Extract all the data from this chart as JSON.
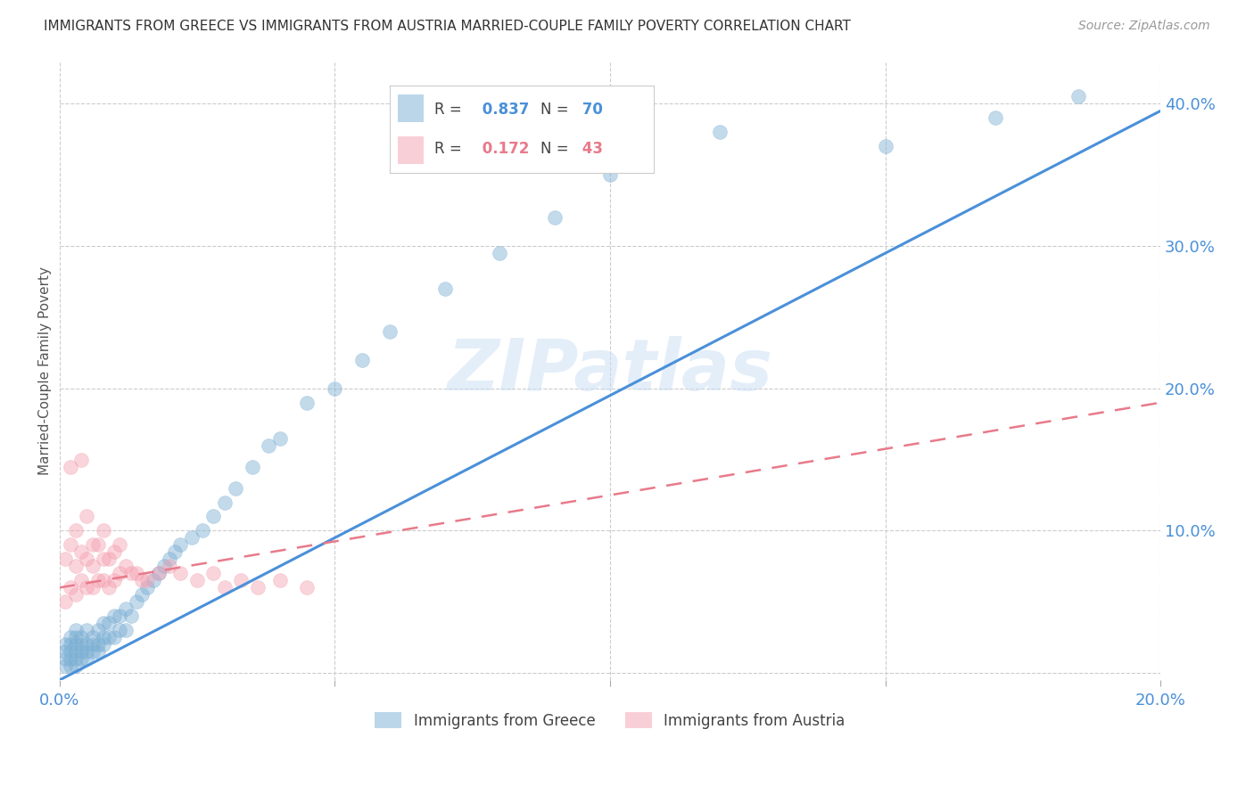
{
  "title": "IMMIGRANTS FROM GREECE VS IMMIGRANTS FROM AUSTRIA MARRIED-COUPLE FAMILY POVERTY CORRELATION CHART",
  "source": "Source: ZipAtlas.com",
  "ylabel": "Married-Couple Family Poverty",
  "xlim": [
    0.0,
    0.2
  ],
  "ylim": [
    -0.005,
    0.43
  ],
  "greece_color": "#7bafd4",
  "austria_color": "#f4a0b0",
  "greece_R": 0.837,
  "greece_N": 70,
  "austria_R": 0.172,
  "austria_N": 43,
  "greece_line_color": "#4a90d9",
  "austria_line_color": "#e87a8a",
  "background_color": "#ffffff",
  "greece_x": [
    0.001,
    0.001,
    0.001,
    0.001,
    0.002,
    0.002,
    0.002,
    0.002,
    0.002,
    0.003,
    0.003,
    0.003,
    0.003,
    0.003,
    0.003,
    0.004,
    0.004,
    0.004,
    0.004,
    0.005,
    0.005,
    0.005,
    0.005,
    0.006,
    0.006,
    0.006,
    0.007,
    0.007,
    0.007,
    0.008,
    0.008,
    0.008,
    0.009,
    0.009,
    0.01,
    0.01,
    0.011,
    0.011,
    0.012,
    0.012,
    0.013,
    0.014,
    0.015,
    0.016,
    0.017,
    0.018,
    0.019,
    0.02,
    0.021,
    0.022,
    0.024,
    0.026,
    0.028,
    0.03,
    0.032,
    0.035,
    0.038,
    0.04,
    0.045,
    0.05,
    0.055,
    0.06,
    0.07,
    0.08,
    0.09,
    0.1,
    0.12,
    0.15,
    0.17,
    0.185
  ],
  "greece_y": [
    0.005,
    0.01,
    0.015,
    0.02,
    0.005,
    0.01,
    0.015,
    0.02,
    0.025,
    0.005,
    0.01,
    0.015,
    0.02,
    0.025,
    0.03,
    0.01,
    0.015,
    0.02,
    0.025,
    0.01,
    0.015,
    0.02,
    0.03,
    0.015,
    0.02,
    0.025,
    0.015,
    0.02,
    0.03,
    0.02,
    0.025,
    0.035,
    0.025,
    0.035,
    0.025,
    0.04,
    0.03,
    0.04,
    0.03,
    0.045,
    0.04,
    0.05,
    0.055,
    0.06,
    0.065,
    0.07,
    0.075,
    0.08,
    0.085,
    0.09,
    0.095,
    0.1,
    0.11,
    0.12,
    0.13,
    0.145,
    0.16,
    0.165,
    0.19,
    0.2,
    0.22,
    0.24,
    0.27,
    0.295,
    0.32,
    0.35,
    0.38,
    0.37,
    0.39,
    0.405
  ],
  "austria_x": [
    0.001,
    0.001,
    0.002,
    0.002,
    0.002,
    0.003,
    0.003,
    0.003,
    0.004,
    0.004,
    0.004,
    0.005,
    0.005,
    0.005,
    0.006,
    0.006,
    0.006,
    0.007,
    0.007,
    0.008,
    0.008,
    0.008,
    0.009,
    0.009,
    0.01,
    0.01,
    0.011,
    0.011,
    0.012,
    0.013,
    0.014,
    0.015,
    0.016,
    0.018,
    0.02,
    0.022,
    0.025,
    0.028,
    0.03,
    0.033,
    0.036,
    0.04,
    0.045
  ],
  "austria_y": [
    0.05,
    0.08,
    0.06,
    0.09,
    0.145,
    0.055,
    0.075,
    0.1,
    0.065,
    0.085,
    0.15,
    0.06,
    0.08,
    0.11,
    0.06,
    0.075,
    0.09,
    0.065,
    0.09,
    0.065,
    0.08,
    0.1,
    0.06,
    0.08,
    0.065,
    0.085,
    0.07,
    0.09,
    0.075,
    0.07,
    0.07,
    0.065,
    0.065,
    0.07,
    0.075,
    0.07,
    0.065,
    0.07,
    0.06,
    0.065,
    0.06,
    0.065,
    0.06
  ],
  "greece_line_x": [
    0.0,
    0.2
  ],
  "greece_line_y": [
    -0.005,
    0.395
  ],
  "austria_line_x": [
    0.0,
    0.2
  ],
  "austria_line_y": [
    0.06,
    0.19
  ]
}
